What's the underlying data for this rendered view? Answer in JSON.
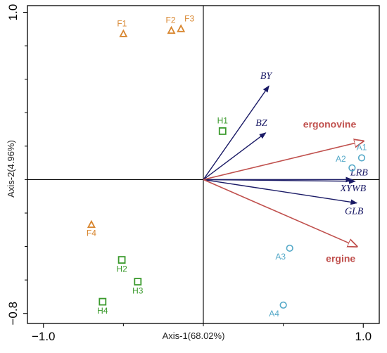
{
  "chart_data": {
    "type": "scatter",
    "subtype": "RDA biplot",
    "title": "",
    "xlabel": "Axis-1(68.02%)",
    "ylabel": "Axis-2(4.96%)",
    "xlim": [
      -1.1,
      1.1
    ],
    "ylim": [
      -0.86,
      1.04
    ],
    "x_ticks": [
      -1.0,
      1.0
    ],
    "x_tick_labels": [
      "−1.0",
      "1.0"
    ],
    "y_ticks": [
      1.0,
      -0.8
    ],
    "y_tick_labels": [
      "1.0",
      "−0.8"
    ],
    "grid": false,
    "legend": "none",
    "series": [
      {
        "marker": "triangle",
        "color": "#d8862f",
        "points": [
          {
            "label": "F1",
            "x": -0.5,
            "y": 0.87
          },
          {
            "label": "F2",
            "x": -0.2,
            "y": 0.89
          },
          {
            "label": "F3",
            "x": -0.14,
            "y": 0.9
          },
          {
            "label": "F4",
            "x": -0.7,
            "y": -0.27
          }
        ]
      },
      {
        "marker": "square",
        "color": "#3a9a2c",
        "points": [
          {
            "label": "H1",
            "x": 0.12,
            "y": 0.29
          },
          {
            "label": "H2",
            "x": -0.51,
            "y": -0.48
          },
          {
            "label": "H3",
            "x": -0.41,
            "y": -0.61
          },
          {
            "label": "H4",
            "x": -0.63,
            "y": -0.73
          }
        ]
      },
      {
        "marker": "circle",
        "color": "#55a9c8",
        "points": [
          {
            "label": "A1",
            "x": 0.99,
            "y": 0.13
          },
          {
            "label": "A2",
            "x": 0.93,
            "y": 0.07
          },
          {
            "label": "A3",
            "x": 0.54,
            "y": -0.41
          },
          {
            "label": "A4",
            "x": 0.5,
            "y": -0.75
          }
        ]
      }
    ],
    "vectors": [
      {
        "label": "BY",
        "x": 0.41,
        "y": 0.56,
        "color": "#1a1a66",
        "style": "italic"
      },
      {
        "label": "BZ",
        "x": 0.39,
        "y": 0.28,
        "color": "#1a1a66",
        "style": "italic"
      },
      {
        "label": "LRB",
        "x": 0.93,
        "y": 0.0,
        "color": "#1a1a66",
        "style": "italic"
      },
      {
        "label": "XYWB",
        "x": 0.95,
        "y": -0.01,
        "color": "#1a1a66",
        "style": "italic"
      },
      {
        "label": "GLB",
        "x": 0.96,
        "y": -0.14,
        "color": "#1a1a66",
        "style": "italic"
      },
      {
        "label": "ergonovine",
        "x": 1.0,
        "y": 0.23,
        "color": "#c0504d",
        "style": "bold"
      },
      {
        "label": "ergine",
        "x": 0.96,
        "y": -0.4,
        "color": "#c0504d",
        "style": "bold"
      }
    ]
  }
}
